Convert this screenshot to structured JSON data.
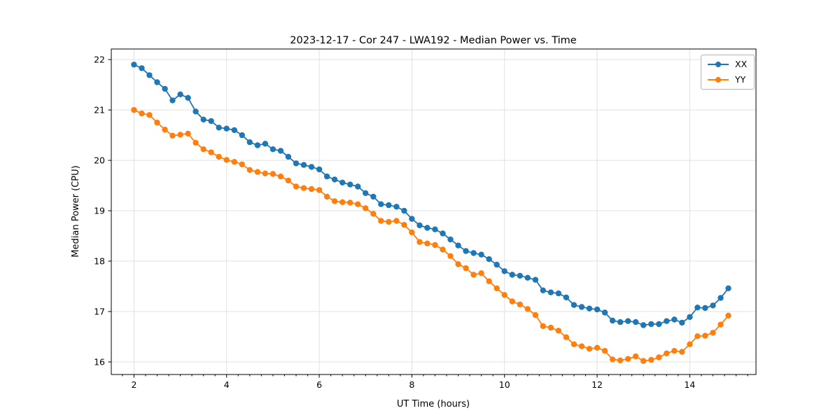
{
  "chart_data": {
    "type": "line",
    "title": "2023-12-17 - Cor 247 - LWA192 - Median Power vs. Time",
    "xlabel": "UT Time (hours)",
    "ylabel": "Median Power (CPU)",
    "xlim": [
      1.51,
      15.43
    ],
    "ylim": [
      15.75,
      22.21
    ],
    "xticks": [
      2,
      4,
      6,
      8,
      10,
      12,
      14
    ],
    "yticks": [
      16,
      17,
      18,
      19,
      20,
      21,
      22
    ],
    "x_minor_tick_step": 0.25,
    "grid": true,
    "legend_position": "upper right",
    "x": [
      2.0,
      2.167,
      2.333,
      2.5,
      2.667,
      2.833,
      3.0,
      3.167,
      3.333,
      3.5,
      3.667,
      3.833,
      4.0,
      4.167,
      4.333,
      4.5,
      4.667,
      4.833,
      5.0,
      5.167,
      5.333,
      5.5,
      5.667,
      5.833,
      6.0,
      6.167,
      6.333,
      6.5,
      6.667,
      6.833,
      7.0,
      7.167,
      7.333,
      7.5,
      7.667,
      7.833,
      8.0,
      8.167,
      8.333,
      8.5,
      8.667,
      8.833,
      9.0,
      9.167,
      9.333,
      9.5,
      9.667,
      9.833,
      10.0,
      10.167,
      10.333,
      10.5,
      10.667,
      10.833,
      11.0,
      11.167,
      11.333,
      11.5,
      11.667,
      11.833,
      12.0,
      12.167,
      12.333,
      12.5,
      12.667,
      12.833,
      13.0,
      13.167,
      13.333,
      13.5,
      13.667,
      13.833,
      14.0,
      14.167,
      14.333,
      14.5,
      14.667,
      14.833
    ],
    "series": [
      {
        "name": "XX",
        "color": "#1f77b4",
        "values": [
          21.9,
          21.83,
          21.69,
          21.55,
          21.42,
          21.19,
          21.31,
          21.24,
          20.97,
          20.81,
          20.78,
          20.65,
          20.63,
          20.6,
          20.5,
          20.36,
          20.3,
          20.33,
          20.22,
          20.19,
          20.07,
          19.94,
          19.91,
          19.87,
          19.82,
          19.68,
          19.62,
          19.56,
          19.52,
          19.48,
          19.35,
          19.28,
          19.13,
          19.11,
          19.08,
          19.0,
          18.84,
          18.71,
          18.66,
          18.63,
          18.55,
          18.43,
          18.31,
          18.2,
          18.16,
          18.13,
          18.04,
          17.93,
          17.8,
          17.73,
          17.71,
          17.67,
          17.63,
          17.42,
          17.38,
          17.36,
          17.28,
          17.13,
          17.09,
          17.06,
          17.04,
          16.98,
          16.82,
          16.79,
          16.81,
          16.79,
          16.73,
          16.75,
          16.75,
          16.81,
          16.84,
          16.78,
          16.89,
          17.08,
          17.07,
          17.12,
          17.27,
          17.46
        ]
      },
      {
        "name": "YY",
        "color": "#ff7f0e",
        "values": [
          21.0,
          20.93,
          20.9,
          20.75,
          20.61,
          20.49,
          20.51,
          20.53,
          20.35,
          20.22,
          20.16,
          20.07,
          20.01,
          19.97,
          19.92,
          19.81,
          19.77,
          19.74,
          19.73,
          19.68,
          19.6,
          19.48,
          19.45,
          19.43,
          19.41,
          19.28,
          19.19,
          19.17,
          19.16,
          19.13,
          19.05,
          18.94,
          18.8,
          18.78,
          18.8,
          18.72,
          18.57,
          18.38,
          18.35,
          18.32,
          18.23,
          18.1,
          17.94,
          17.86,
          17.73,
          17.76,
          17.6,
          17.46,
          17.33,
          17.2,
          17.14,
          17.05,
          16.93,
          16.71,
          16.68,
          16.62,
          16.49,
          16.35,
          16.31,
          16.26,
          16.28,
          16.22,
          16.05,
          16.03,
          16.06,
          16.11,
          16.02,
          16.04,
          16.09,
          16.17,
          16.22,
          16.2,
          16.35,
          16.51,
          16.52,
          16.58,
          16.74,
          16.92
        ]
      }
    ]
  }
}
